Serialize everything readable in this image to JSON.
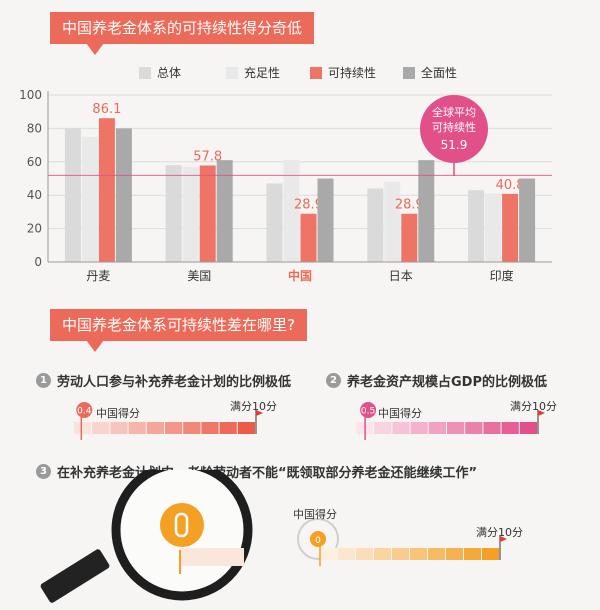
{
  "banner1": "中国养老金体系的可持续性得分奇低",
  "banner2": "中国养老金体系可持续性差在哪里?",
  "legend": [
    {
      "label": "总体",
      "color": "#dadada"
    },
    {
      "label": "充足性",
      "color": "#e9e9e9"
    },
    {
      "label": "可持续性",
      "color": "#ee7466"
    },
    {
      "label": "全面性",
      "color": "#a9a9a9"
    }
  ],
  "chart_data": {
    "type": "bar",
    "categories": [
      "丹麦",
      "美国",
      "中国",
      "日本",
      "印度"
    ],
    "series": [
      {
        "name": "总体",
        "values": [
          80,
          58,
          47,
          44,
          43
        ]
      },
      {
        "name": "充足性",
        "values": [
          75,
          57,
          61,
          48,
          41
        ]
      },
      {
        "name": "可持续性",
        "values": [
          86.1,
          57.8,
          28.9,
          28.9,
          40.8
        ]
      },
      {
        "name": "全面性",
        "values": [
          80,
          61,
          50,
          61,
          50
        ]
      }
    ],
    "data_labels": [
      "86.1",
      "57.8",
      "28.9",
      "28.9",
      "40.8"
    ],
    "yticks": [
      "0",
      "20",
      "40",
      "60",
      "80",
      "100"
    ],
    "ylim": [
      0,
      100
    ],
    "reference_line": 51.9,
    "highlight_category": "中国"
  },
  "callout": {
    "line1": "全球平均",
    "line2": "可持续性",
    "value": "51.9"
  },
  "sections": [
    {
      "num": "1",
      "text": "劳动人口参与补充养老金计划的比例极低",
      "score": "0.4",
      "score_label": "中国得分",
      "full_label": "满分10分",
      "score_value": 0.4,
      "max": 10
    },
    {
      "num": "2",
      "text": "养老金资产规模占GDP的比例极低",
      "score": "0.5",
      "score_label": "中国得分",
      "full_label": "满分10分",
      "score_value": 0.5,
      "max": 10
    },
    {
      "num": "3",
      "text": "在补充养老金计划中，老龄劳动者不能“既领取部分养老金还能继续工作”",
      "score": "0",
      "score_label": "中国得分",
      "full_label": "满分10分",
      "score_value": 0,
      "max": 10
    }
  ],
  "colors": {
    "accent": "#ec6a59",
    "pink": "#e2508a",
    "orange": "#f3a024",
    "gridline": "#d8d8d8"
  }
}
